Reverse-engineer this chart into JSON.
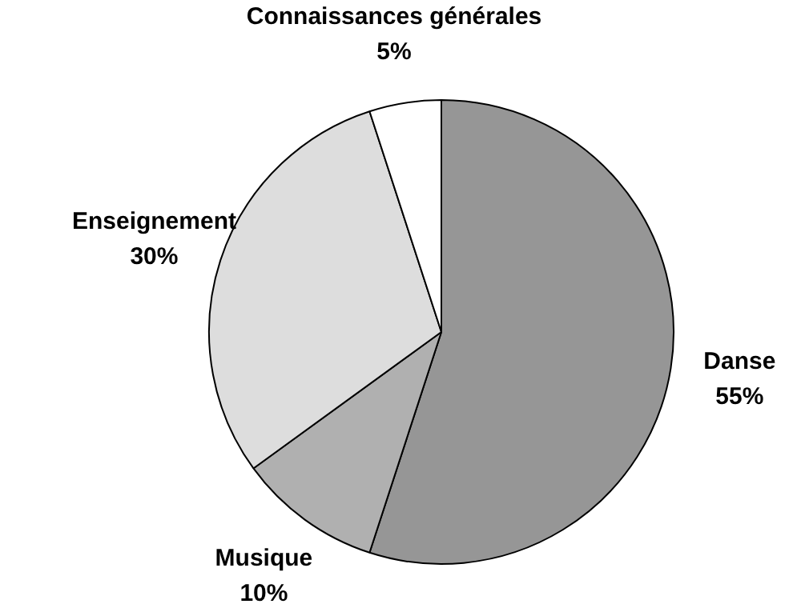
{
  "chart_data": {
    "type": "pie",
    "categories": [
      "Danse",
      "Musique",
      "Enseignement",
      "Connaissances générales"
    ],
    "values": [
      55,
      10,
      30,
      5
    ],
    "colors": [
      "#969696",
      "#b0b0b0",
      "#dddddd",
      "#ffffff"
    ],
    "value_labels": [
      "55%",
      "10%",
      "30%",
      "5%"
    ]
  }
}
